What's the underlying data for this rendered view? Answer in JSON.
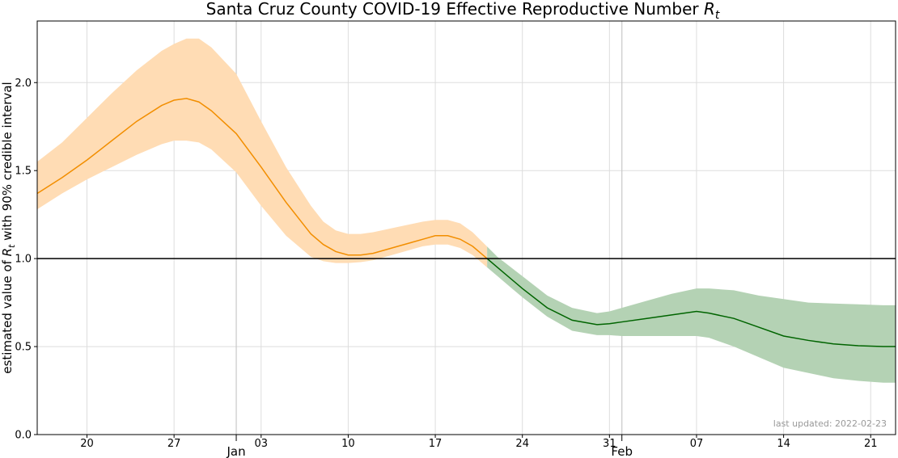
{
  "chart_data": {
    "type": "line",
    "title_main": "Santa Cruz County COVID-19 Effective Reproductive Number ",
    "title_symbol": "R",
    "title_subscript": "t",
    "ylabel_prefix": "estimated value of ",
    "ylabel_symbol": "R",
    "ylabel_subscript": "t",
    "ylabel_suffix": " with 90% credible interval",
    "annotation": "last updated: 2022-02-23",
    "reference_line": 1.0,
    "grid": true,
    "ylim": [
      0.0,
      2.35
    ],
    "xlim": [
      "2021-12-16",
      "2022-02-23"
    ],
    "y_ticks": [
      "0.0",
      "0.5",
      "1.0",
      "1.5",
      "2.0"
    ],
    "x_ticks": [
      {
        "date": "2021-12-20",
        "label": "20"
      },
      {
        "date": "2021-12-27",
        "label": "27"
      },
      {
        "date": "2022-01-03",
        "label": "03"
      },
      {
        "date": "2022-01-10",
        "label": "10"
      },
      {
        "date": "2022-01-17",
        "label": "17"
      },
      {
        "date": "2022-01-24",
        "label": "24"
      },
      {
        "date": "2022-01-31",
        "label": "31"
      },
      {
        "date": "2022-02-07",
        "label": "07"
      },
      {
        "date": "2022-02-14",
        "label": "14"
      },
      {
        "date": "2022-02-21",
        "label": "21"
      }
    ],
    "month_ticks": [
      {
        "date": "2022-01-01",
        "label": "Jan"
      },
      {
        "date": "2022-02-01",
        "label": "Feb"
      }
    ],
    "colors": {
      "above_line": "#f28e00",
      "above_band": "#ffdcb4",
      "below_line": "#006400",
      "below_band": "#b4d2b4",
      "grid": "#dddddd",
      "reference": "#000000"
    },
    "series": {
      "x": [
        "2021-12-16",
        "2021-12-18",
        "2021-12-20",
        "2021-12-22",
        "2021-12-24",
        "2021-12-26",
        "2021-12-27",
        "2021-12-28",
        "2021-12-29",
        "2021-12-30",
        "2022-01-01",
        "2022-01-03",
        "2022-01-05",
        "2022-01-07",
        "2022-01-08",
        "2022-01-09",
        "2022-01-10",
        "2022-01-11",
        "2022-01-12",
        "2022-01-14",
        "2022-01-16",
        "2022-01-17",
        "2022-01-18",
        "2022-01-19",
        "2022-01-20",
        "2022-01-21",
        "2022-01-22",
        "2022-01-24",
        "2022-01-26",
        "2022-01-28",
        "2022-01-30",
        "2022-01-31",
        "2022-02-01",
        "2022-02-03",
        "2022-02-05",
        "2022-02-07",
        "2022-02-08",
        "2022-02-10",
        "2022-02-12",
        "2022-02-14",
        "2022-02-16",
        "2022-02-18",
        "2022-02-20",
        "2022-02-22",
        "2022-02-23"
      ],
      "mean": [
        1.37,
        1.46,
        1.56,
        1.67,
        1.78,
        1.87,
        1.9,
        1.91,
        1.89,
        1.84,
        1.71,
        1.52,
        1.32,
        1.14,
        1.08,
        1.04,
        1.02,
        1.02,
        1.03,
        1.07,
        1.11,
        1.13,
        1.13,
        1.11,
        1.07,
        1.01,
        0.95,
        0.83,
        0.72,
        0.65,
        0.625,
        0.63,
        0.64,
        0.66,
        0.68,
        0.7,
        0.69,
        0.66,
        0.61,
        0.56,
        0.535,
        0.515,
        0.505,
        0.5,
        0.5
      ],
      "lower": [
        1.28,
        1.37,
        1.45,
        1.52,
        1.59,
        1.65,
        1.67,
        1.67,
        1.66,
        1.62,
        1.49,
        1.3,
        1.13,
        1.01,
        0.985,
        0.975,
        0.975,
        0.98,
        0.99,
        1.03,
        1.07,
        1.08,
        1.08,
        1.06,
        1.02,
        0.96,
        0.9,
        0.78,
        0.67,
        0.59,
        0.565,
        0.565,
        0.56,
        0.56,
        0.56,
        0.56,
        0.55,
        0.5,
        0.44,
        0.38,
        0.35,
        0.32,
        0.305,
        0.295,
        0.295
      ],
      "upper": [
        1.55,
        1.66,
        1.8,
        1.94,
        2.07,
        2.18,
        2.22,
        2.25,
        2.25,
        2.2,
        2.05,
        1.78,
        1.52,
        1.3,
        1.21,
        1.16,
        1.14,
        1.14,
        1.15,
        1.18,
        1.21,
        1.22,
        1.22,
        1.2,
        1.15,
        1.08,
        1.01,
        0.9,
        0.79,
        0.72,
        0.69,
        0.7,
        0.72,
        0.76,
        0.8,
        0.83,
        0.83,
        0.82,
        0.79,
        0.77,
        0.75,
        0.745,
        0.74,
        0.735,
        0.735
      ]
    }
  }
}
